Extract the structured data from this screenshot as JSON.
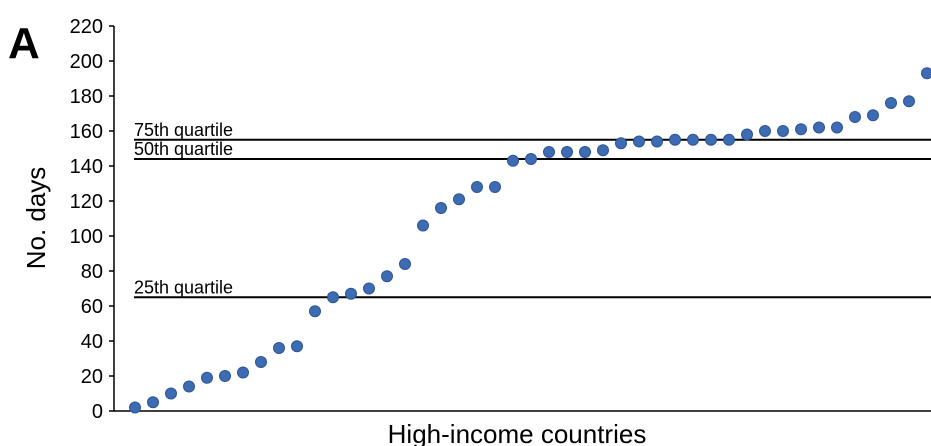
{
  "colors": {
    "point": "#3d6cb3",
    "point_stroke": "#2d5597",
    "lines": "#000000"
  },
  "chart_data": {
    "type": "scatter",
    "panel_label": "A",
    "xlabel": "High-income countries",
    "ylabel": "No. days",
    "ylim": [
      0,
      220
    ],
    "yticks": [
      0,
      20,
      40,
      60,
      80,
      100,
      120,
      140,
      160,
      180,
      200,
      220
    ],
    "grid": false,
    "values": [
      2,
      5,
      10,
      14,
      19,
      20,
      22,
      28,
      36,
      37,
      57,
      65,
      67,
      70,
      77,
      84,
      106,
      116,
      121,
      128,
      128,
      143,
      144,
      148,
      148,
      148,
      149,
      153,
      154,
      154,
      155,
      155,
      155,
      155,
      158,
      160,
      160,
      161,
      162,
      162,
      168,
      169,
      176,
      177,
      193
    ],
    "reference_lines": [
      {
        "label": "75th quartile",
        "value": 155
      },
      {
        "label": "50th quartile",
        "value": 144
      },
      {
        "label": "25th quartile",
        "value": 65
      }
    ]
  }
}
